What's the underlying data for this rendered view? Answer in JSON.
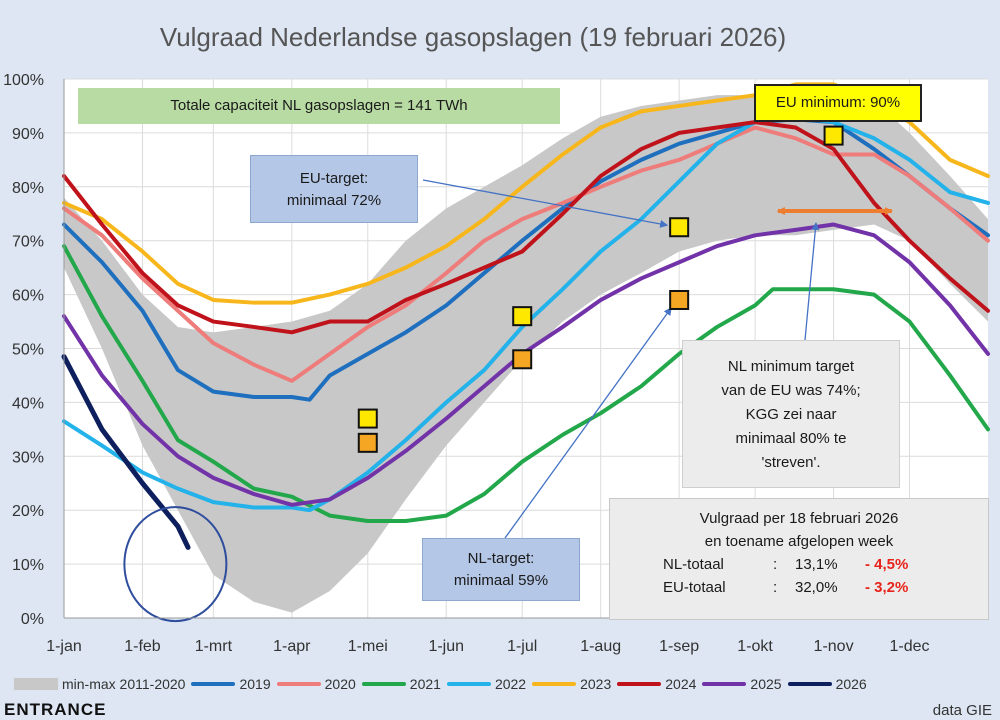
{
  "chart_data": {
    "type": "line",
    "title": "Vulgraad Nederlandse gasopslagen (19 februari 2026)",
    "ylim": [
      0,
      100
    ],
    "xlim": [
      0,
      365
    ],
    "y_ticks": [
      0,
      10,
      20,
      30,
      40,
      50,
      60,
      70,
      80,
      90,
      100
    ],
    "y_tick_labels": [
      "0%",
      "10%",
      "20%",
      "30%",
      "40%",
      "50%",
      "60%",
      "70%",
      "80%",
      "90%",
      "100%"
    ],
    "x_ticks": [
      0,
      31,
      59,
      90,
      120,
      151,
      181,
      212,
      243,
      273,
      304,
      334
    ],
    "x_tick_labels": [
      "1-jan",
      "1-feb",
      "1-mrt",
      "1-apr",
      "1-mei",
      "1-jun",
      "1-jul",
      "1-aug",
      "1-sep",
      "1-okt",
      "1-nov",
      "1-dec"
    ],
    "band": {
      "name": "min-max 2011-2020",
      "color": "#c8c8c8",
      "x": [
        0,
        15,
        31,
        45,
        59,
        75,
        90,
        105,
        120,
        135,
        151,
        166,
        181,
        197,
        212,
        228,
        243,
        258,
        273,
        289,
        304,
        320,
        334,
        350,
        365
      ],
      "min": [
        65,
        50,
        32,
        20,
        8,
        3,
        1,
        5,
        12,
        22,
        32,
        40,
        48,
        55,
        60,
        64,
        68,
        70,
        71,
        71,
        72,
        73,
        70,
        62,
        55
      ],
      "max": [
        78,
        70,
        60,
        54,
        53,
        54,
        55,
        57,
        62,
        70,
        76,
        80,
        84,
        89,
        93,
        95,
        96,
        97,
        97,
        97,
        96,
        96,
        90,
        82,
        74
      ]
    },
    "series": [
      {
        "name": "2019",
        "color": "#1f6fbf",
        "x": [
          0,
          15,
          31,
          45,
          59,
          75,
          90,
          97,
          105,
          120,
          135,
          151,
          166,
          181,
          197,
          212,
          228,
          243,
          258,
          273,
          289,
          304,
          320,
          334,
          350,
          365
        ],
        "y": [
          73,
          66,
          57,
          46,
          42,
          41,
          41,
          40.5,
          45,
          49,
          53,
          58,
          64,
          70,
          76,
          81,
          85,
          88,
          90,
          92,
          92.5,
          92,
          87,
          82,
          76,
          71
        ]
      },
      {
        "name": "2020",
        "color": "#ee7c7a",
        "x": [
          0,
          15,
          31,
          45,
          59,
          75,
          90,
          105,
          120,
          135,
          151,
          166,
          181,
          197,
          212,
          228,
          243,
          258,
          273,
          289,
          304,
          320,
          334,
          350,
          365
        ],
        "y": [
          76,
          71,
          63,
          57,
          51,
          47,
          44,
          49,
          54,
          58,
          64,
          70,
          74,
          77,
          80,
          83,
          85,
          88,
          91,
          89,
          86,
          86,
          82,
          76,
          70
        ]
      },
      {
        "name": "2021",
        "color": "#22a84a",
        "x": [
          0,
          15,
          31,
          45,
          59,
          75,
          90,
          105,
          120,
          135,
          151,
          166,
          181,
          197,
          212,
          228,
          243,
          258,
          273,
          280,
          289,
          304,
          320,
          334,
          350,
          365
        ],
        "y": [
          69,
          56,
          44,
          33,
          29,
          24,
          22.5,
          19,
          18,
          18,
          19,
          23,
          29,
          34,
          38,
          43,
          49,
          54,
          58,
          61,
          61,
          61,
          60,
          55,
          45,
          35
        ]
      },
      {
        "name": "2022",
        "color": "#23b2ea",
        "x": [
          0,
          15,
          31,
          45,
          59,
          75,
          90,
          97,
          105,
          120,
          135,
          151,
          166,
          181,
          197,
          212,
          228,
          243,
          258,
          273,
          289,
          304,
          320,
          334,
          350,
          365
        ],
        "y": [
          36.5,
          32,
          27,
          24,
          21.5,
          20.5,
          20.5,
          20,
          22,
          27,
          33,
          40,
          46,
          54,
          61,
          68,
          74,
          81,
          88,
          92,
          93,
          92,
          89,
          85,
          79,
          77
        ]
      },
      {
        "name": "2023",
        "color": "#f7b71c",
        "x": [
          0,
          15,
          31,
          45,
          59,
          75,
          90,
          105,
          120,
          135,
          151,
          166,
          181,
          197,
          212,
          228,
          243,
          258,
          273,
          289,
          304,
          320,
          334,
          350,
          365
        ],
        "y": [
          77,
          74,
          68,
          62,
          59,
          58.5,
          58.5,
          60,
          62,
          65,
          69,
          74,
          80,
          86,
          91,
          94,
          95,
          96,
          97,
          99,
          99,
          96,
          92,
          85,
          82
        ]
      },
      {
        "name": "2024",
        "color": "#c0121a",
        "x": [
          0,
          15,
          31,
          45,
          59,
          75,
          90,
          105,
          120,
          135,
          151,
          166,
          181,
          197,
          212,
          228,
          243,
          258,
          273,
          289,
          304,
          320,
          334,
          350,
          365
        ],
        "y": [
          82,
          73,
          64,
          58,
          55,
          54,
          53,
          55,
          55,
          59,
          62,
          65,
          68,
          75,
          82,
          87,
          90,
          91,
          92,
          91,
          87,
          77,
          70,
          63,
          57
        ]
      },
      {
        "name": "2025",
        "color": "#7232a8",
        "x": [
          0,
          15,
          31,
          45,
          59,
          75,
          90,
          105,
          120,
          135,
          151,
          166,
          181,
          197,
          212,
          228,
          243,
          258,
          273,
          289,
          304,
          320,
          334,
          350,
          365
        ],
        "y": [
          56,
          45,
          36,
          30,
          26,
          23,
          21,
          22,
          26,
          31,
          37,
          43,
          49,
          54,
          59,
          63,
          66,
          69,
          71,
          72,
          73,
          71,
          66,
          58,
          49
        ]
      },
      {
        "name": "2026",
        "color": "#0e1f5e",
        "x": [
          0,
          15,
          31,
          45,
          49
        ],
        "y": [
          48.5,
          35,
          25,
          17,
          13.1
        ]
      }
    ],
    "markers": [
      {
        "x": 120,
        "y": 37,
        "color": "#ffe800"
      },
      {
        "x": 120,
        "y": 32.5,
        "color": "#f5a623"
      },
      {
        "x": 181,
        "y": 56,
        "color": "#ffe800"
      },
      {
        "x": 181,
        "y": 48,
        "color": "#f5a623"
      },
      {
        "x": 243,
        "y": 72.5,
        "color": "#ffe800"
      },
      {
        "x": 243,
        "y": 59,
        "color": "#f5a623"
      },
      {
        "x": 304,
        "y": 89.5,
        "color": "#ffe800"
      }
    ],
    "range_arrow": {
      "from": 282,
      "to": 327,
      "y": 75.5,
      "color": "#ed7d31"
    }
  },
  "annotations": {
    "capacity": "Totale capaciteit NL gasopslagen = 141 TWh",
    "eu_minimum": "EU minimum: 90%",
    "eu_target_line1": "EU-target:",
    "eu_target_line2": "minimaal 72%",
    "nl_target_line1": "NL-target:",
    "nl_target_line2": "minimaal 59%",
    "nl_min_line1": "NL minimum target",
    "nl_min_line2": "van de EU was 74%;",
    "nl_min_line3": "KGG zei naar",
    "nl_min_line4": "minimaal 80% te",
    "nl_min_line5": "'streven'."
  },
  "fill_box": {
    "line1": "Vulgraad per 18 februari 2026",
    "line2": "en toename afgelopen week",
    "rows": [
      {
        "label": "NL-totaal",
        "sep": ":",
        "value": "13,1%",
        "change": "- 4,5%"
      },
      {
        "label": "EU-totaal",
        "sep": ":",
        "value": "32,0%",
        "change": "- 3,2%"
      }
    ]
  },
  "legend": {
    "band_label": "min-max 2011-2020",
    "items": [
      {
        "label": "2019",
        "color": "#1f6fbf"
      },
      {
        "label": "2020",
        "color": "#ee7c7a"
      },
      {
        "label": "2021",
        "color": "#22a84a"
      },
      {
        "label": "2022",
        "color": "#23b2ea"
      },
      {
        "label": "2023",
        "color": "#f7b71c"
      },
      {
        "label": "2024",
        "color": "#c0121a"
      },
      {
        "label": "2025",
        "color": "#7232a8"
      },
      {
        "label": "2026",
        "color": "#0e1f5e"
      }
    ]
  },
  "footer": {
    "brand": "ENTRANCE",
    "source": "data GIE"
  }
}
